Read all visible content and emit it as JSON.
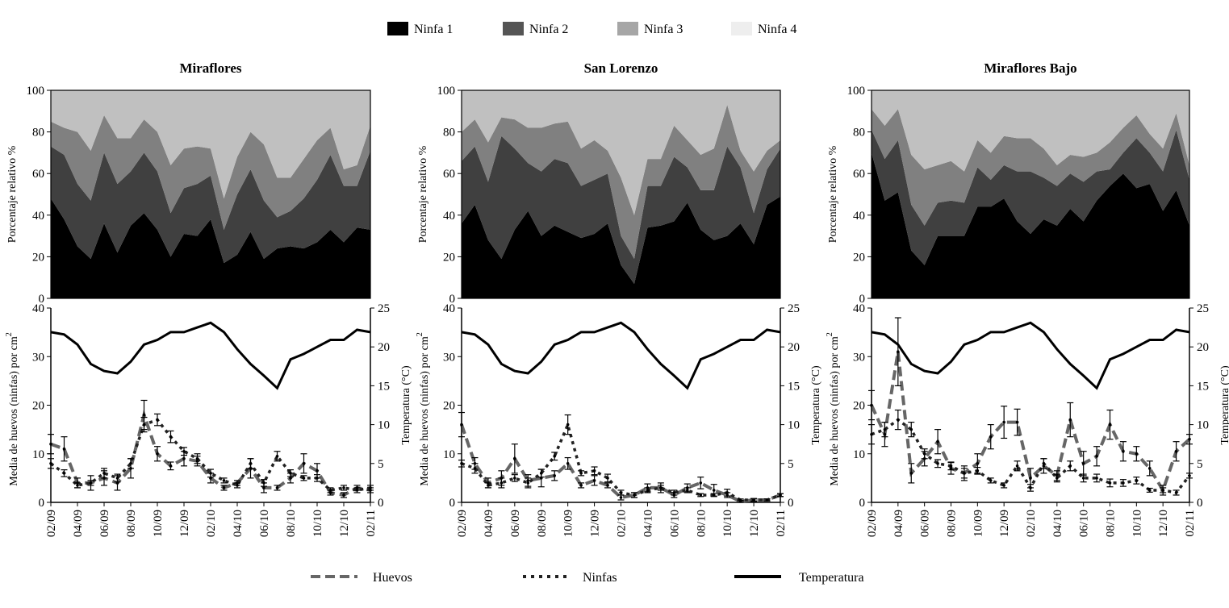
{
  "legend_top": [
    {
      "label": "Ninfa 1",
      "color": "#000000"
    },
    {
      "label": "Ninfa 2",
      "color": "#555555"
    },
    {
      "label": "Ninfa 3",
      "color": "#a6a6a6"
    },
    {
      "label": "Ninfa 4",
      "color": "#eeeeee"
    }
  ],
  "legend_bottom": [
    {
      "label": "Huevos",
      "style": "dashed",
      "color": "#666666"
    },
    {
      "label": "Ninfas",
      "style": "dotted",
      "color": "#222222"
    },
    {
      "label": "Temperatura",
      "style": "solid",
      "color": "#000000"
    }
  ],
  "chart_data": {
    "type": "area+line",
    "stack_colors": [
      "#000000",
      "#404040",
      "#808080",
      "#c0c0c0"
    ],
    "top_ylabel": "Porcentaje relativo %",
    "top_ylim": [
      0,
      100
    ],
    "top_yticks": [
      "0",
      "20",
      "40",
      "60",
      "80",
      "100"
    ],
    "bottom_ylabel_left": "Media de huevos (ninfas) por cm",
    "bottom_ylabel_left_sup": "2",
    "bottom_ylabel_right": "Temperatura (°C)",
    "bottom_ylim_left": [
      0,
      40
    ],
    "bottom_ylim_right": [
      0,
      25
    ],
    "bottom_yticks_left": [
      "0",
      "10",
      "20",
      "30",
      "40"
    ],
    "bottom_yticks_right": [
      "0",
      "5",
      "10",
      "15",
      "20",
      "25"
    ],
    "x": [
      "02/09",
      "03/09",
      "04/09",
      "05/09",
      "06/09",
      "07/09",
      "08/09",
      "09/09",
      "10/09",
      "11/09",
      "12/09",
      "01/10",
      "02/10",
      "03/10",
      "04/10",
      "05/10",
      "06/10",
      "07/10",
      "08/10",
      "09/10",
      "10/10",
      "11/10",
      "12/10",
      "01/11",
      "02/11"
    ],
    "xtick_labels": [
      "02/09",
      "04/09",
      "06/09",
      "08/09",
      "10/09",
      "12/09",
      "02/10",
      "04/10",
      "06/10",
      "08/10",
      "10/10",
      "12/10",
      "02/11"
    ],
    "temperatura": [
      21.9,
      21.6,
      20.3,
      17.8,
      16.9,
      16.6,
      18.1,
      20.3,
      20.9,
      21.9,
      21.9,
      22.5,
      23.1,
      21.9,
      19.7,
      17.8,
      16.3,
      14.7,
      18.4,
      19.1,
      20.0,
      20.9,
      20.9,
      22.2,
      21.9
    ],
    "sites": [
      {
        "title": "Miraflores",
        "ninfa1": [
          48,
          38,
          25,
          19,
          36,
          22,
          35,
          41,
          33,
          20,
          31,
          30,
          38,
          17,
          21,
          32,
          19,
          24,
          25,
          24,
          27,
          33,
          27,
          34,
          33
        ],
        "ninfa2": [
          25,
          31,
          30,
          28,
          34,
          33,
          26,
          29,
          28,
          21,
          22,
          25,
          21,
          16,
          29,
          30,
          28,
          15,
          17,
          24,
          30,
          36,
          27,
          20,
          38
        ],
        "ninfa3": [
          12,
          13,
          25,
          24,
          18,
          22,
          16,
          16,
          19,
          23,
          19,
          18,
          13,
          15,
          18,
          18,
          27,
          19,
          16,
          19,
          19,
          13,
          8,
          10,
          12
        ],
        "ninfa4": [
          15,
          18,
          20,
          29,
          12,
          23,
          23,
          14,
          20,
          36,
          28,
          27,
          28,
          52,
          32,
          20,
          26,
          42,
          42,
          33,
          24,
          18,
          38,
          36,
          17
        ],
        "huevos": [
          12,
          11,
          4,
          4,
          5,
          4,
          7,
          18,
          10,
          7.5,
          9,
          8.5,
          5,
          3,
          4,
          7,
          3,
          3,
          5,
          8,
          6.5,
          2,
          1.5,
          3,
          2.5
        ],
        "huevos_err": [
          2,
          2.5,
          1,
          1.5,
          1.5,
          1.5,
          2,
          3,
          1.5,
          0.8,
          1.5,
          1,
          1,
          0.5,
          0.5,
          2,
          1,
          0.5,
          1,
          2,
          1.5,
          0.5,
          0.5,
          0.5,
          0.5
        ],
        "ninfas": [
          8,
          6,
          3.5,
          4,
          6,
          5,
          8,
          16,
          17,
          13.5,
          10.5,
          9,
          6,
          4.5,
          3.5,
          8,
          4,
          9.5,
          6,
          5,
          5,
          2.5,
          3,
          2.5,
          3
        ],
        "ninfas_err": [
          1,
          0.7,
          0.5,
          0.5,
          1,
          0.8,
          1,
          1.5,
          1.2,
          1.2,
          0.8,
          1,
          0.8,
          0.5,
          0.5,
          1,
          0.7,
          1,
          0.7,
          0.5,
          0.7,
          0.5,
          0.5,
          0.5,
          0.5
        ]
      },
      {
        "title": "San Lorenzo",
        "ninfa1": [
          36,
          45,
          28,
          19,
          33,
          42,
          30,
          35,
          32,
          29,
          31,
          36,
          16,
          7,
          34,
          35,
          37,
          46,
          33,
          28,
          30,
          36,
          26,
          45,
          49
        ],
        "ninfa2": [
          30,
          28,
          28,
          59,
          39,
          23,
          31,
          32,
          33,
          25,
          26,
          24,
          14,
          12,
          20,
          19,
          31,
          17,
          19,
          24,
          43,
          27,
          15,
          17,
          23
        ],
        "ninfa3": [
          14,
          13,
          19,
          9,
          14,
          17,
          21,
          17,
          20,
          18,
          19,
          11,
          28,
          21,
          13,
          13,
          15,
          13,
          17,
          20,
          20,
          8,
          20,
          9,
          4
        ],
        "ninfa4": [
          20,
          14,
          25,
          13,
          14,
          18,
          18,
          16,
          15,
          28,
          24,
          29,
          42,
          60,
          33,
          33,
          17,
          24,
          31,
          28,
          7,
          29,
          39,
          29,
          24
        ],
        "huevos": [
          16,
          8,
          4,
          5,
          9,
          4.5,
          5,
          5.5,
          8,
          3.5,
          4.5,
          3.5,
          1,
          1.5,
          3,
          3,
          1.5,
          3,
          4,
          2.5,
          1.5,
          0.2,
          0.5,
          0.5,
          1.5
        ],
        "huevos_err": [
          2.5,
          1.2,
          1,
          1.5,
          3,
          1.2,
          1.8,
          1,
          1.2,
          0.5,
          1,
          0.5,
          0.5,
          0.5,
          0.8,
          1,
          0.5,
          0.8,
          1.2,
          1.2,
          0.5,
          0.2,
          0.3,
          0.2,
          0.3
        ],
        "ninfas": [
          8,
          7,
          3.5,
          4,
          5,
          4,
          6,
          9.5,
          16,
          6,
          6.5,
          5,
          2,
          1.5,
          2.5,
          3,
          2,
          2.5,
          1.5,
          1.5,
          2,
          0.5,
          0.5,
          0.5,
          1.5
        ],
        "ninfas_err": [
          0.7,
          1,
          0.5,
          1,
          0.7,
          1,
          0.8,
          0.8,
          2,
          0.5,
          0.8,
          0.8,
          0.5,
          0.5,
          0.5,
          0.5,
          0.5,
          0.5,
          0.3,
          0.3,
          0.7,
          0.2,
          0.2,
          0.2,
          0.3
        ]
      },
      {
        "title": "Miraflores Bajo",
        "ninfa1": [
          70,
          47,
          51,
          23,
          16,
          30,
          30,
          30,
          44,
          44,
          48,
          37,
          31,
          38,
          35,
          43,
          37,
          47,
          54,
          60,
          53,
          55,
          42,
          52,
          35
        ],
        "ninfa2": [
          11,
          20,
          25,
          22,
          19,
          16,
          17,
          16,
          19,
          13,
          16,
          24,
          30,
          20,
          19,
          17,
          19,
          14,
          8,
          10,
          24,
          15,
          19,
          29,
          22
        ],
        "ninfa3": [
          10,
          16,
          15,
          24,
          27,
          18,
          19,
          15,
          13,
          13,
          14,
          16,
          16,
          14,
          10,
          9,
          12,
          9,
          13,
          12,
          11,
          9,
          11,
          8,
          7
        ],
        "ninfa4": [
          9,
          17,
          9,
          31,
          38,
          36,
          34,
          39,
          24,
          30,
          22,
          23,
          23,
          28,
          36,
          31,
          32,
          30,
          25,
          18,
          12,
          21,
          28,
          11,
          36
        ],
        "huevos": [
          20,
          14,
          31,
          6,
          9,
          12.5,
          7,
          6,
          8,
          13.5,
          16.5,
          16.5,
          5,
          7.5,
          5.5,
          17,
          8,
          9.5,
          16,
          10.5,
          10,
          7,
          2.5,
          10.5,
          13
        ],
        "huevos_err": [
          3,
          2.5,
          7,
          2,
          1.5,
          2.5,
          1.2,
          1.5,
          2,
          2.5,
          3.3,
          2.7,
          2,
          1.5,
          1,
          3.5,
          2.5,
          2,
          3,
          2,
          1.5,
          1.5,
          1,
          2,
          1
        ],
        "ninfas": [
          14,
          15,
          17,
          15,
          10,
          8,
          7.5,
          6,
          6.5,
          4.5,
          3.5,
          7.5,
          3,
          8,
          5,
          7.5,
          5,
          5,
          4,
          4,
          4.5,
          2.5,
          2.5,
          2,
          5.5
        ],
        "ninfas_err": [
          2,
          1.5,
          2,
          1.5,
          1,
          0.8,
          0.8,
          1,
          0.7,
          0.5,
          0.5,
          1,
          0.7,
          1,
          0.8,
          1,
          0.8,
          0.8,
          0.8,
          0.7,
          0.7,
          0.4,
          0.5,
          0.5,
          0.5
        ]
      }
    ]
  }
}
